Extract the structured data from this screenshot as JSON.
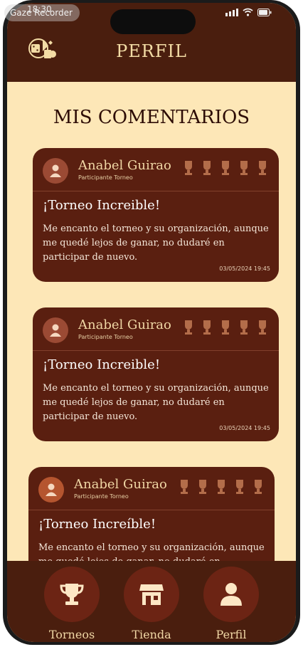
{
  "recorder": {
    "label": "Gaze Recorder"
  },
  "status_bar": {
    "time": "18:30"
  },
  "header": {
    "title": "PERFIL"
  },
  "section": {
    "title": "MIS COMENTARIOS"
  },
  "comments": [
    {
      "name": "Anabel Guirao",
      "role": "Participante Torneo",
      "title": "¡Torneo Increible!",
      "text": "Me encanto el torneo y su organización, aunque me quedé lejos de ganar, no dudaré en participar de nuevo.",
      "date": "03/05/2024 19:45"
    },
    {
      "name": "Anabel Guirao",
      "role": "Participante Torneo",
      "title": "¡Torneo Increible!",
      "text": "Me encanto el torneo y su organización, aunque me quedé lejos de ganar, no dudaré en participar de nuevo.",
      "date": "03/05/2024 19:45"
    },
    {
      "name": "Anabel Guirao",
      "role": "Participante Torneo",
      "title": "¡Torneo Increíble!",
      "text": "Me encanto el torneo y su organización, aunque me quedé lejos de ganar, no dudaré en",
      "date": ""
    }
  ],
  "nav": {
    "items": [
      {
        "label": "Torneos",
        "icon": "trophy-icon"
      },
      {
        "label": "Tienda",
        "icon": "store-icon"
      },
      {
        "label": "Perfil",
        "icon": "user-icon"
      }
    ]
  },
  "colors": {
    "header": "#4a1e0e",
    "background": "#fde7b7",
    "card": "#5a1f10",
    "nav_circle": "#6c2414",
    "accent_text": "#f0d7a5"
  }
}
